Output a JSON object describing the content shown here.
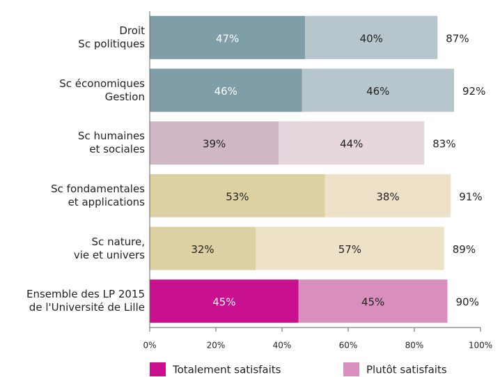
{
  "chart_data": {
    "type": "stacked-barh",
    "categories": [
      "Droit\nSc politiques",
      "Sc économiques\nGestion",
      "Sc humaines\net sociales",
      "Sc fondamentales\net applications",
      "Sc nature,\nvie et univers",
      "Ensemble des LP 2015\nde l'Université de Lille"
    ],
    "series": [
      {
        "name": "Totalement satisfaits",
        "color": "#c8108f",
        "colors": [
          "#7f9ea8",
          "#7f9ea8",
          "#d0b7c5",
          "#ddd0a2",
          "#ddd0a2",
          "#c8108f"
        ],
        "values": [
          47,
          46,
          39,
          53,
          32,
          45
        ],
        "value_labels": [
          "47%",
          "46%",
          "39%",
          "53%",
          "32%",
          "45%"
        ]
      },
      {
        "name": "Plutôt satisfaits",
        "color": "#d98fbd",
        "colors": [
          "#b7c6cc",
          "#b7c6cc",
          "#e6d6de",
          "#ede2c8",
          "#ede2c8",
          "#d98fbd"
        ],
        "values": [
          40,
          46,
          44,
          38,
          57,
          45
        ],
        "value_labels": [
          "40%",
          "46%",
          "44%",
          "38%",
          "57%",
          "45%"
        ]
      }
    ],
    "totals": [
      87,
      92,
      83,
      91,
      89,
      90
    ],
    "total_labels": [
      "87%",
      "92%",
      "83%",
      "91%",
      "89%",
      "90%"
    ],
    "xlim": [
      0,
      100
    ],
    "xticks": [
      {
        "value": 0,
        "label": "0%"
      },
      {
        "value": 20,
        "label": "20%"
      },
      {
        "value": 40,
        "label": "40%"
      },
      {
        "value": 60,
        "label": "60%"
      },
      {
        "value": 80,
        "label": "80%"
      },
      {
        "value": 100,
        "label": "100%"
      }
    ]
  }
}
